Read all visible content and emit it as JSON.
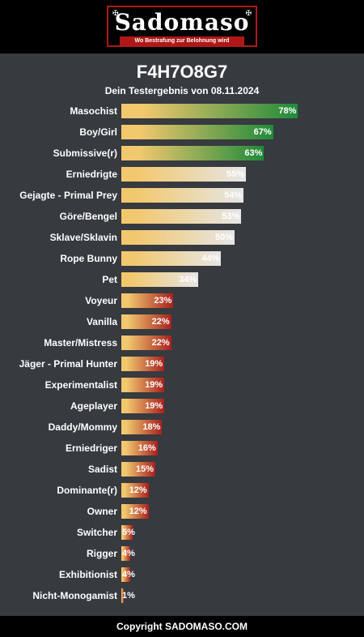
{
  "header": {
    "logo_text": "Sadomaso",
    "logo_subtitle": "Wo Bestrafung zur Belohnung wird"
  },
  "result": {
    "title": "F4H7O8G7",
    "subtitle": "Dein Testergebnis von 08.11.2024"
  },
  "colors": {
    "page_bg": "#373a3f",
    "header_bg": "#000000",
    "brand_red": "#b01818",
    "bar_start": "#f2c86e",
    "high_end": "#1f8a3a",
    "mid_end": "#e6e6e6",
    "low_end": "#a8201e"
  },
  "chart_data": {
    "type": "bar",
    "orientation": "horizontal",
    "title": "F4H7O8G7",
    "subtitle": "Dein Testergebnis von 08.11.2024",
    "xlim": [
      0,
      100
    ],
    "unit": "%",
    "categories": [
      "Masochist",
      "Boy/Girl",
      "Submissive(r)",
      "Erniedrigte",
      "Gejagte - Primal Prey",
      "Göre/Bengel",
      "Sklave/Sklavin",
      "Rope Bunny",
      "Pet",
      "Voyeur",
      "Vanilla",
      "Master/Mistress",
      "Jäger - Primal Hunter",
      "Experimentalist",
      "Ageplayer",
      "Daddy/Mommy",
      "Erniedriger",
      "Sadist",
      "Dominante(r)",
      "Owner",
      "Switcher",
      "Rigger",
      "Exhibitionist",
      "Nicht-Monogamist"
    ],
    "values": [
      78,
      67,
      63,
      55,
      54,
      53,
      50,
      44,
      34,
      23,
      22,
      22,
      19,
      19,
      19,
      18,
      16,
      15,
      12,
      12,
      5,
      4,
      4,
      1
    ],
    "value_labels": [
      "78%",
      "67%",
      "63%",
      "55%",
      "54%",
      "53%",
      "50%",
      "44%",
      "34%",
      "23%",
      "22%",
      "22%",
      "19%",
      "19%",
      "19%",
      "18%",
      "16%",
      "15%",
      "12%",
      "12%",
      "5%",
      "4%",
      "4%",
      "1%"
    ]
  },
  "footer": {
    "text": "Copyright SADOMASO.COM"
  }
}
